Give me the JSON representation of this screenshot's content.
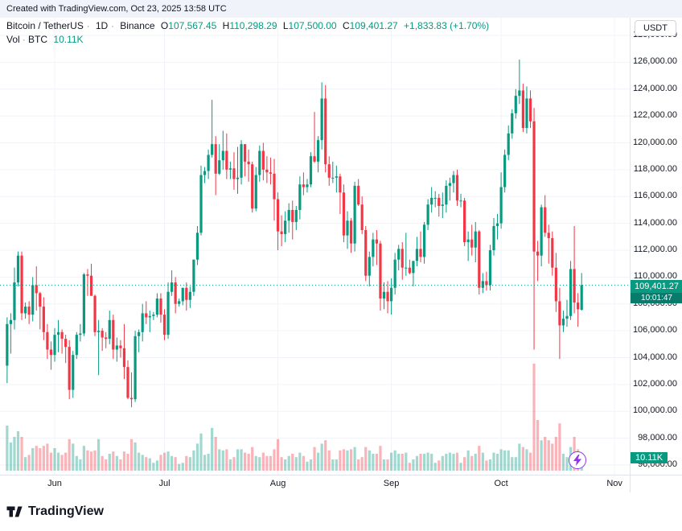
{
  "header": {
    "attribution": "Created with TradingView.com, Oct 23, 2025 13:58 UTC"
  },
  "legend": {
    "symbol": "Bitcoin / TetherUS",
    "sep": "·",
    "interval": "1D",
    "exchange": "Binance",
    "ohlc": [
      {
        "k": "O",
        "v": "107,567.45"
      },
      {
        "k": "H",
        "v": "110,298.29"
      },
      {
        "k": "L",
        "v": "107,500.00"
      },
      {
        "k": "C",
        "v": "109,401.27"
      }
    ],
    "change": "+1,833.83 (+1.70%)",
    "vol_label": "Vol",
    "vol_unit": "BTC",
    "vol_value": "10.11K"
  },
  "currency_button": "USDT",
  "price_label": {
    "value": "109,401.27",
    "countdown": "10:01:47"
  },
  "vol_badge": "10.11K",
  "footer": {
    "brand": "TradingView"
  },
  "colors": {
    "up": "#089981",
    "down": "#f23645",
    "vol_up": "rgba(8,153,129,0.38)",
    "vol_down": "rgba(242,54,69,0.38)",
    "grid": "#f0f3fa",
    "badge": "#089981"
  },
  "chart_data": {
    "type": "candlestick+volume",
    "title": "Bitcoin / TetherUS · 1D · Binance",
    "quote_currency": "USDT",
    "start_date": "2025-05-19",
    "end_date": "2025-10-23",
    "price_axis": {
      "min": 96000,
      "max": 128000,
      "step": 2000
    },
    "last": {
      "open": 107567.45,
      "high": 110298.29,
      "low": 107500.0,
      "close": 109401.27,
      "change": 1833.83,
      "change_pct": 1.7,
      "volume": "10.11K BTC"
    },
    "month_labels": [
      "Jun",
      "Jul",
      "Aug",
      "Sep",
      "Oct",
      "Nov"
    ],
    "month_start_indices": [
      13,
      43,
      74,
      105,
      135,
      166
    ],
    "candles_format": [
      "open",
      "high",
      "low",
      "close",
      "volume_kBTC"
    ],
    "candles": [
      [
        103400,
        107000,
        102100,
        106500,
        40
      ],
      [
        106500,
        107300,
        104300,
        106800,
        25
      ],
      [
        106800,
        110700,
        106100,
        109600,
        30
      ],
      [
        109600,
        111900,
        109300,
        111600,
        35
      ],
      [
        111600,
        111900,
        106800,
        107300,
        30
      ],
      [
        107300,
        108100,
        106900,
        107800,
        12
      ],
      [
        107800,
        108200,
        106500,
        107200,
        14
      ],
      [
        107200,
        110000,
        106700,
        109400,
        20
      ],
      [
        109400,
        110800,
        107500,
        108800,
        22
      ],
      [
        108800,
        108900,
        106100,
        107800,
        20
      ],
      [
        107800,
        108500,
        105300,
        105900,
        22
      ],
      [
        105900,
        106500,
        103900,
        104600,
        24
      ],
      [
        104600,
        105200,
        103100,
        104200,
        16
      ],
      [
        104200,
        106200,
        103700,
        105700,
        20
      ],
      [
        105700,
        106800,
        104400,
        105900,
        16
      ],
      [
        105900,
        106100,
        104300,
        105400,
        14
      ],
      [
        105400,
        105700,
        103600,
        104800,
        16
      ],
      [
        104800,
        105300,
        100900,
        101600,
        28
      ],
      [
        101600,
        104500,
        101000,
        104200,
        24
      ],
      [
        104200,
        105900,
        103900,
        105700,
        13
      ],
      [
        105700,
        106500,
        105200,
        105800,
        10
      ],
      [
        105800,
        110300,
        105600,
        110200,
        22
      ],
      [
        110200,
        110600,
        108600,
        110100,
        18
      ],
      [
        110100,
        111000,
        108900,
        108600,
        17
      ],
      [
        108600,
        108700,
        105600,
        105900,
        18
      ],
      [
        105900,
        106800,
        102700,
        106000,
        28
      ],
      [
        106000,
        106200,
        104500,
        105500,
        13
      ],
      [
        105500,
        105900,
        104700,
        105400,
        10
      ],
      [
        105400,
        107500,
        105000,
        106800,
        15
      ],
      [
        106800,
        107200,
        103900,
        104600,
        17
      ],
      [
        104600,
        105500,
        103700,
        104900,
        13
      ],
      [
        104900,
        105300,
        104000,
        104700,
        10
      ],
      [
        104700,
        106500,
        102400,
        103300,
        17
      ],
      [
        103300,
        103800,
        100900,
        101000,
        15
      ],
      [
        101000,
        102900,
        100300,
        100900,
        28
      ],
      [
        100900,
        106000,
        100700,
        105600,
        25
      ],
      [
        105600,
        106100,
        104400,
        105900,
        16
      ],
      [
        105900,
        108000,
        105200,
        107300,
        14
      ],
      [
        107300,
        108200,
        106500,
        107000,
        12
      ],
      [
        107000,
        107500,
        105900,
        107100,
        11
      ],
      [
        107100,
        107400,
        106800,
        107200,
        7
      ],
      [
        107200,
        108800,
        107000,
        108400,
        9
      ],
      [
        108400,
        108800,
        106600,
        107200,
        14
      ],
      [
        107200,
        107600,
        105300,
        105700,
        16
      ],
      [
        105700,
        109600,
        105400,
        108900,
        17
      ],
      [
        108900,
        110500,
        108600,
        109600,
        13
      ],
      [
        109600,
        110000,
        107300,
        108000,
        12
      ],
      [
        108000,
        108400,
        107800,
        108200,
        6
      ],
      [
        108200,
        109200,
        107900,
        109200,
        7
      ],
      [
        109200,
        109600,
        107500,
        108300,
        13
      ],
      [
        108300,
        109300,
        107700,
        108900,
        12
      ],
      [
        108900,
        111300,
        108600,
        111300,
        18
      ],
      [
        111300,
        113800,
        110900,
        113300,
        24
      ],
      [
        113300,
        118300,
        113100,
        117600,
        33
      ],
      [
        117600,
        118200,
        117000,
        117900,
        14
      ],
      [
        117900,
        119500,
        117300,
        119100,
        15
      ],
      [
        119100,
        123200,
        118900,
        119900,
        38
      ],
      [
        119900,
        120500,
        116100,
        117700,
        30
      ],
      [
        117700,
        119900,
        117600,
        118700,
        19
      ],
      [
        118700,
        120900,
        118000,
        119400,
        18
      ],
      [
        119400,
        120700,
        117300,
        118000,
        19
      ],
      [
        118000,
        118600,
        117300,
        118100,
        10
      ],
      [
        118100,
        119300,
        116500,
        117300,
        12
      ],
      [
        117300,
        119700,
        116200,
        117400,
        19
      ],
      [
        117400,
        120200,
        116900,
        119900,
        19
      ],
      [
        119900,
        119900,
        117500,
        118600,
        16
      ],
      [
        118600,
        119500,
        117100,
        118400,
        15
      ],
      [
        118400,
        118600,
        114800,
        115100,
        21
      ],
      [
        115100,
        118200,
        114900,
        117600,
        13
      ],
      [
        117600,
        119800,
        117100,
        119400,
        12
      ],
      [
        119400,
        120000,
        117200,
        118000,
        16
      ],
      [
        118000,
        119000,
        117000,
        117800,
        13
      ],
      [
        117800,
        118900,
        116900,
        117700,
        13
      ],
      [
        117700,
        118800,
        114200,
        115800,
        19
      ],
      [
        115800,
        116300,
        112000,
        113400,
        28
      ],
      [
        113400,
        114600,
        112300,
        113200,
        12
      ],
      [
        113200,
        114900,
        112600,
        114200,
        10
      ],
      [
        114200,
        115500,
        113300,
        115000,
        13
      ],
      [
        115000,
        115700,
        112800,
        114100,
        15
      ],
      [
        114100,
        115300,
        113500,
        115000,
        12
      ],
      [
        115000,
        117500,
        114300,
        116900,
        16
      ],
      [
        116900,
        117800,
        116100,
        116700,
        13
      ],
      [
        116700,
        117300,
        116300,
        116900,
        8
      ],
      [
        116900,
        119300,
        116700,
        119000,
        10
      ],
      [
        119000,
        122300,
        118500,
        118600,
        21
      ],
      [
        118600,
        120500,
        117800,
        120200,
        16
      ],
      [
        120200,
        124500,
        119500,
        123300,
        24
      ],
      [
        123300,
        124300,
        117800,
        118400,
        27
      ],
      [
        118400,
        119000,
        116800,
        117400,
        18
      ],
      [
        117400,
        118600,
        117000,
        117400,
        10
      ],
      [
        117400,
        118300,
        116300,
        117500,
        10
      ],
      [
        117500,
        117700,
        114700,
        116300,
        18
      ],
      [
        116300,
        116900,
        112600,
        113100,
        19
      ],
      [
        113100,
        114900,
        112100,
        114200,
        18
      ],
      [
        114200,
        114400,
        111800,
        112500,
        19
      ],
      [
        112500,
        117100,
        111900,
        116800,
        21
      ],
      [
        116800,
        117300,
        115300,
        115400,
        10
      ],
      [
        115400,
        116000,
        113200,
        113500,
        12
      ],
      [
        113500,
        113800,
        109700,
        110100,
        21
      ],
      [
        110100,
        111900,
        109300,
        111500,
        18
      ],
      [
        111500,
        113300,
        110800,
        112800,
        15
      ],
      [
        112800,
        113500,
        110900,
        112500,
        15
      ],
      [
        112500,
        112700,
        107500,
        108400,
        22
      ],
      [
        108400,
        109600,
        107600,
        108900,
        10
      ],
      [
        108900,
        109700,
        107300,
        108200,
        10
      ],
      [
        108200,
        109900,
        107200,
        109200,
        16
      ],
      [
        109200,
        111800,
        108700,
        111300,
        18
      ],
      [
        111300,
        112400,
        110500,
        112100,
        15
      ],
      [
        112100,
        112600,
        109800,
        110700,
        15
      ],
      [
        110700,
        113300,
        110100,
        110700,
        16
      ],
      [
        110700,
        111300,
        110200,
        110300,
        7
      ],
      [
        110300,
        111200,
        109300,
        111200,
        10
      ],
      [
        111200,
        113000,
        110800,
        112100,
        13
      ],
      [
        112100,
        113400,
        111100,
        111500,
        15
      ],
      [
        111500,
        114100,
        111000,
        113900,
        15
      ],
      [
        113900,
        115800,
        113500,
        115400,
        16
      ],
      [
        115400,
        116700,
        114800,
        115900,
        15
      ],
      [
        115900,
        116400,
        115200,
        115900,
        7
      ],
      [
        115900,
        116200,
        114500,
        115300,
        9
      ],
      [
        115300,
        116300,
        114400,
        115400,
        13
      ],
      [
        115400,
        117200,
        114800,
        116800,
        15
      ],
      [
        116800,
        117400,
        115700,
        117000,
        16
      ],
      [
        117000,
        117900,
        116300,
        117600,
        15
      ],
      [
        117600,
        118000,
        115300,
        115700,
        16
      ],
      [
        115700,
        116200,
        115200,
        115700,
        7
      ],
      [
        115700,
        115900,
        112300,
        112600,
        12
      ],
      [
        112600,
        113400,
        111200,
        112800,
        18
      ],
      [
        112800,
        113900,
        111600,
        112200,
        13
      ],
      [
        112200,
        114100,
        111100,
        113400,
        15
      ],
      [
        113400,
        113500,
        108700,
        109200,
        22
      ],
      [
        109200,
        110300,
        108800,
        109700,
        16
      ],
      [
        109700,
        110400,
        109000,
        109400,
        9
      ],
      [
        109400,
        112400,
        109000,
        112000,
        10
      ],
      [
        112000,
        114400,
        111600,
        113800,
        16
      ],
      [
        113800,
        114700,
        112800,
        114000,
        15
      ],
      [
        114000,
        117800,
        113600,
        116700,
        19
      ],
      [
        116700,
        119500,
        116300,
        119100,
        18
      ],
      [
        119100,
        121300,
        118700,
        120700,
        18
      ],
      [
        120700,
        122500,
        120300,
        122200,
        12
      ],
      [
        122200,
        124000,
        121800,
        123500,
        12
      ],
      [
        123500,
        126200,
        122900,
        123900,
        24
      ],
      [
        123900,
        124400,
        120800,
        121100,
        21
      ],
      [
        121100,
        124200,
        120700,
        123300,
        19
      ],
      [
        123300,
        123900,
        121100,
        121600,
        16
      ],
      [
        121600,
        122600,
        104600,
        111900,
        95
      ],
      [
        111900,
        112700,
        109700,
        111600,
        45
      ],
      [
        111600,
        115400,
        110800,
        115200,
        27
      ],
      [
        115200,
        116100,
        113000,
        113300,
        30
      ],
      [
        113300,
        113900,
        111000,
        112900,
        27
      ],
      [
        112900,
        113400,
        110100,
        110700,
        24
      ],
      [
        110700,
        111800,
        107400,
        108200,
        30
      ],
      [
        108200,
        109200,
        103900,
        106400,
        42
      ],
      [
        106400,
        107500,
        105900,
        106900,
        15
      ],
      [
        106900,
        108300,
        106300,
        107100,
        12
      ],
      [
        107100,
        111200,
        106800,
        110600,
        21
      ],
      [
        110600,
        113800,
        107300,
        108100,
        30
      ],
      [
        108100,
        108800,
        106300,
        107600,
        19
      ],
      [
        107567.45,
        110298.29,
        107500,
        109401.27,
        10.11
      ]
    ]
  }
}
